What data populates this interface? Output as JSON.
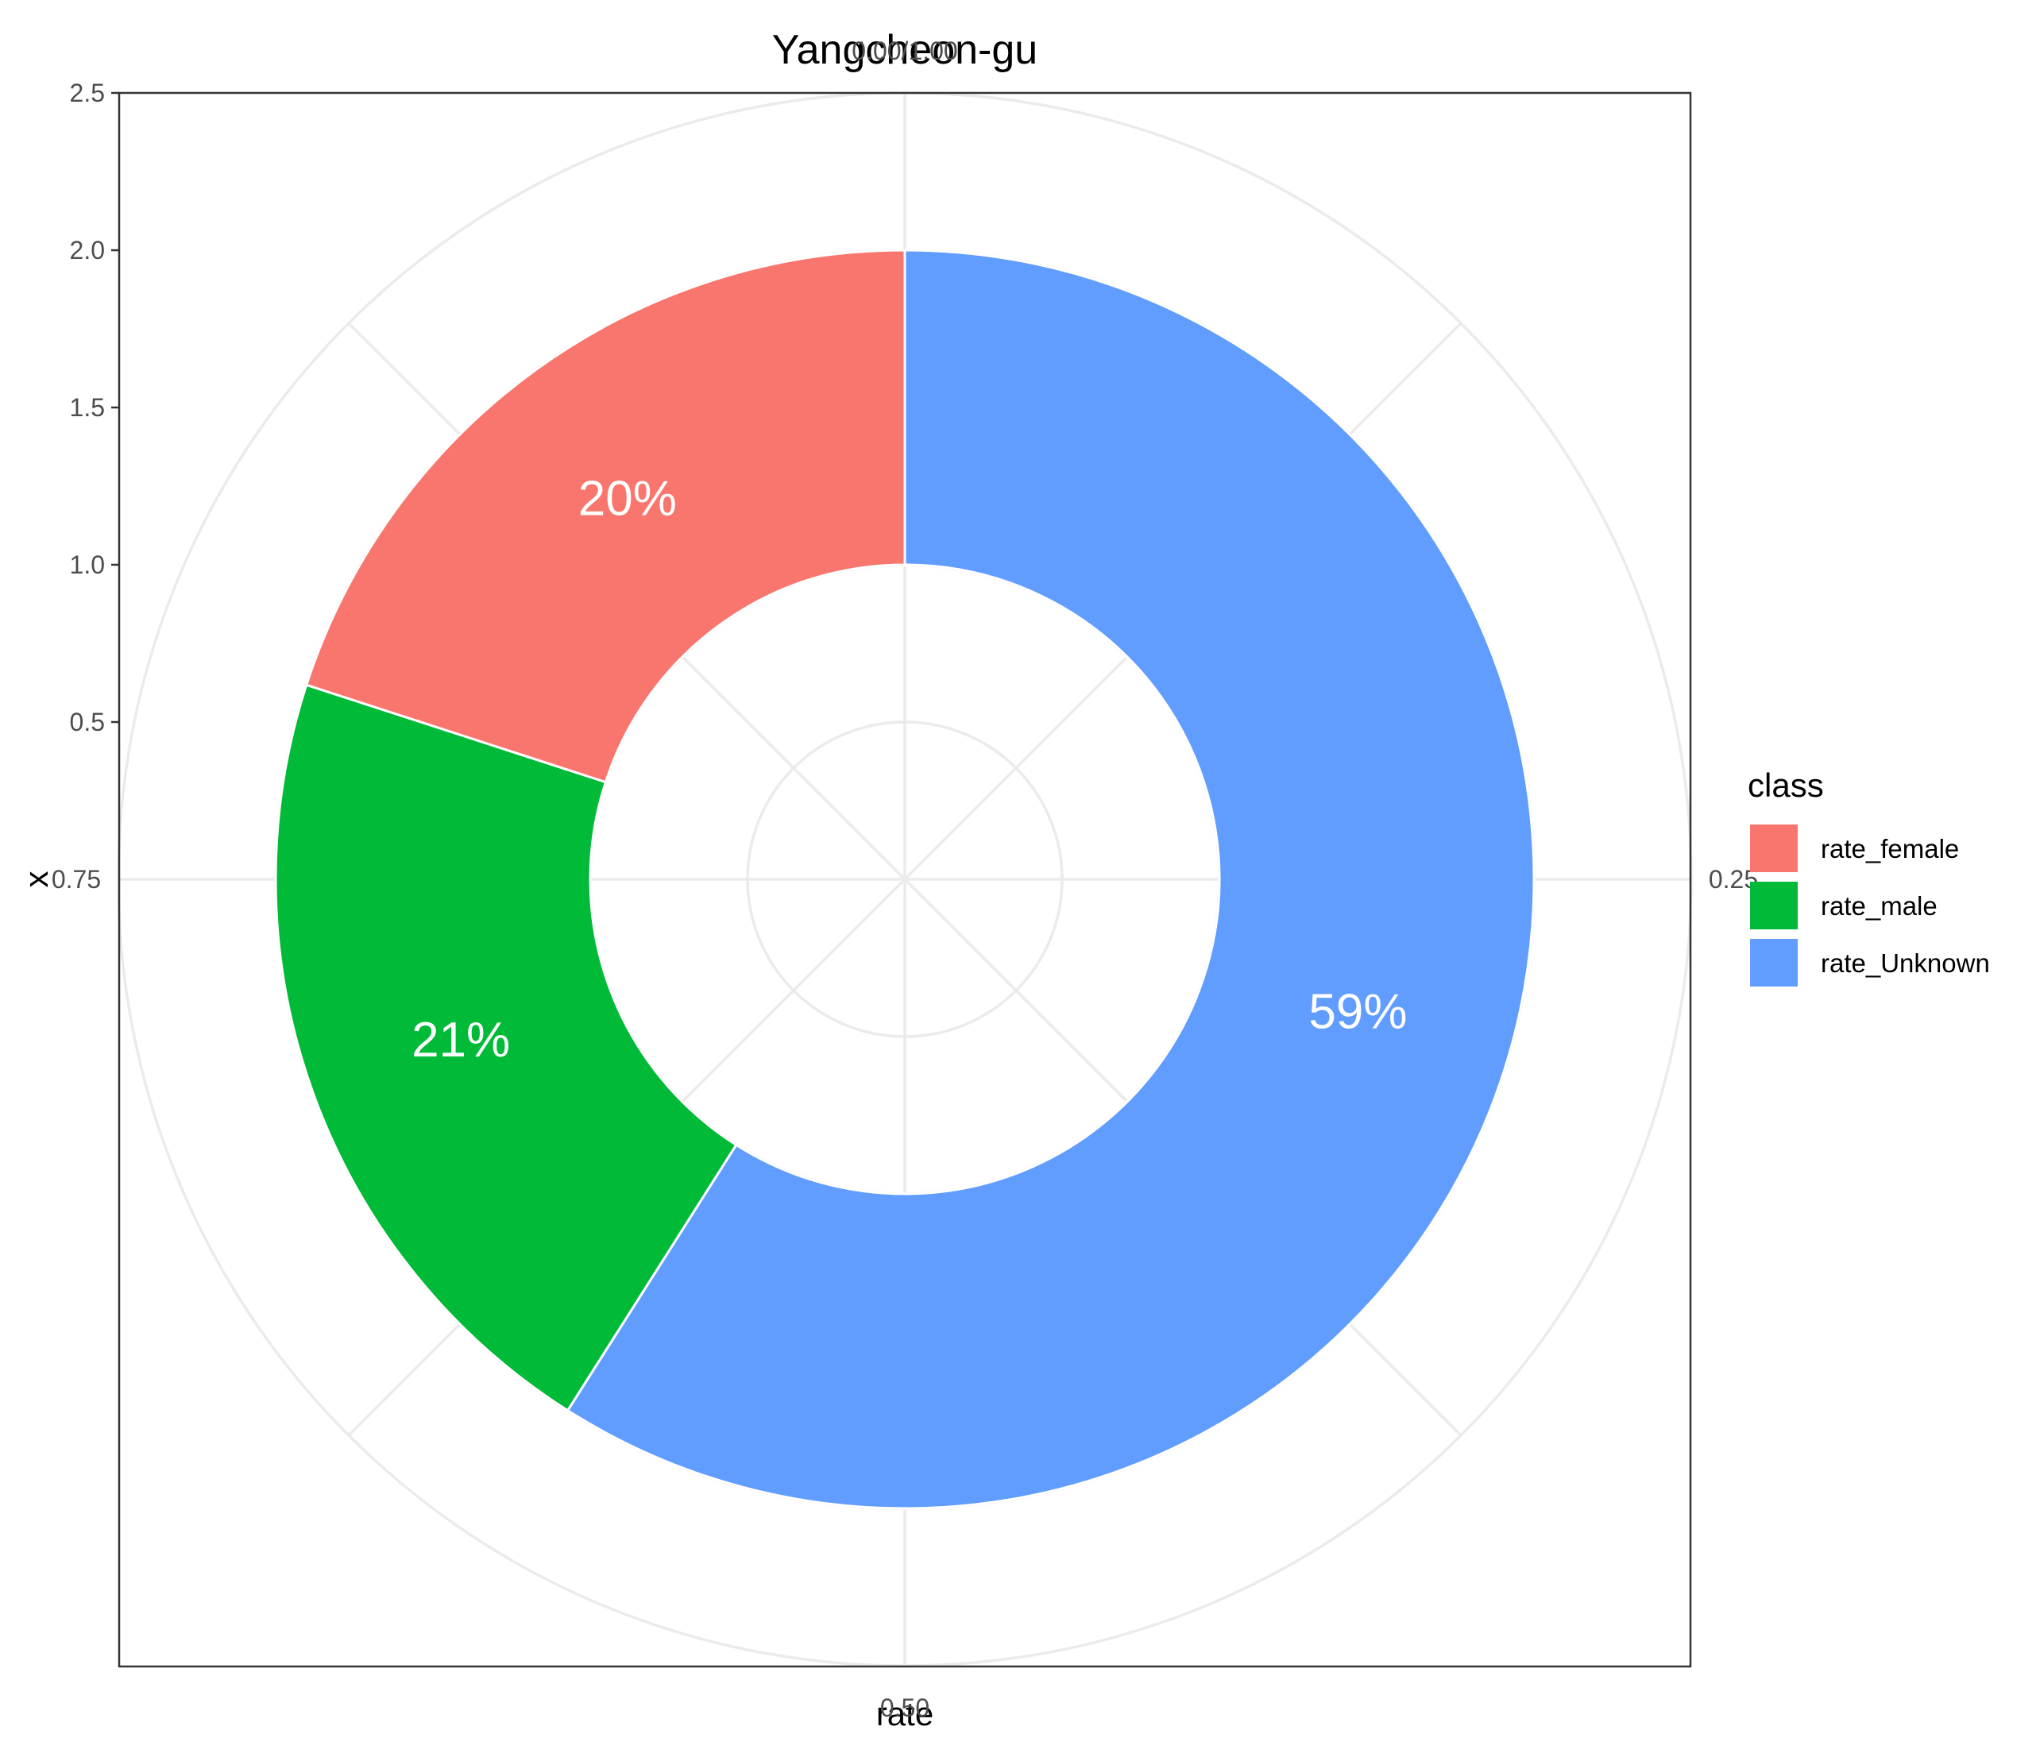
{
  "chart_data": {
    "type": "pie",
    "variant": "donut",
    "coord": "polar",
    "title": "Yangcheon-gu",
    "xlabel": "rate",
    "ylabel": "x",
    "theta_ticks": [
      "0.00/1.00",
      "0.25",
      "0.50",
      "0.75"
    ],
    "radial_ticks": [
      "0.5",
      "1.0",
      "1.5",
      "2.0",
      "2.5"
    ],
    "radial_tick_values": [
      0.5,
      1.0,
      1.5,
      2.0,
      2.5
    ],
    "radial_range": [
      0.5,
      2.5
    ],
    "grid": true,
    "legend": {
      "title": "class",
      "position": "right"
    },
    "slices": [
      {
        "name": "rate_Unknown",
        "value": 0.59,
        "label": "59%",
        "color": "#619CFF"
      },
      {
        "name": "rate_male",
        "value": 0.21,
        "label": "21%",
        "color": "#00BA38"
      },
      {
        "name": "rate_female",
        "value": 0.2,
        "label": "20%",
        "color": "#F8766D"
      }
    ],
    "legend_order": [
      "rate_female",
      "rate_male",
      "rate_Unknown"
    ]
  }
}
